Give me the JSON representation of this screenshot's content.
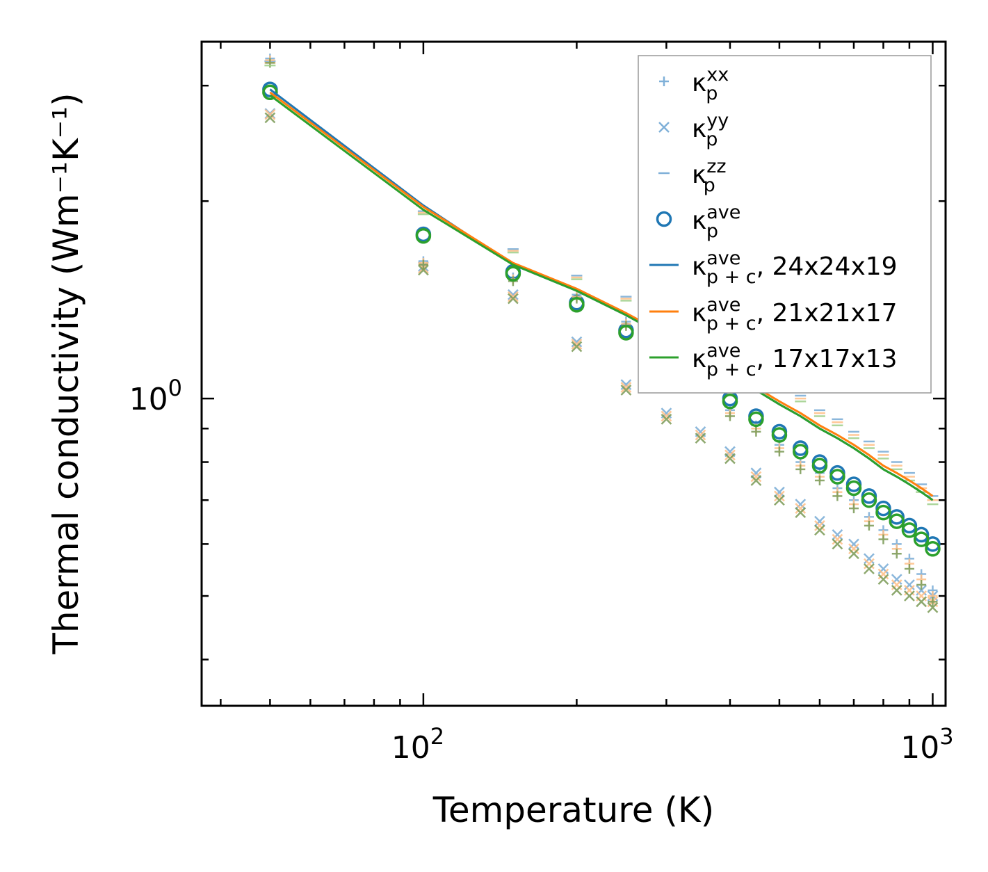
{
  "chart_data": {
    "type": "scatter",
    "title": "",
    "xlabel": "Temperature (K)",
    "ylabel": "Thermal conductivity (Wm⁻¹K⁻¹)",
    "xscale": "log",
    "yscale": "log",
    "xlim": [
      36.7,
      1060
    ],
    "ylim": [
      0.34,
      3.5
    ],
    "x_ticks": [
      {
        "value": 100,
        "base": "10",
        "exp": "2"
      },
      {
        "value": 1000,
        "base": "10",
        "exp": "3"
      }
    ],
    "y_ticks": [
      {
        "value": 1,
        "base": "10",
        "exp": "0"
      }
    ],
    "legend_position": "top-right",
    "temperatures": [
      50,
      100,
      150,
      200,
      250,
      300,
      350,
      400,
      450,
      500,
      550,
      600,
      650,
      700,
      750,
      800,
      850,
      900,
      950,
      1000
    ],
    "marker_series": [
      {
        "name": "kxx",
        "label_base": "κ",
        "label_sub": "p",
        "label_sup": "xx",
        "marker": "plus",
        "color": "#7fb0d8",
        "values": [
          3.3,
          1.62,
          1.53,
          1.44,
          1.31,
          1.17,
          1.06,
          0.96,
          0.91,
          0.85,
          0.8,
          0.77,
          0.73,
          0.7,
          0.66,
          0.63,
          0.6,
          0.57,
          0.54,
          0.51
        ]
      },
      {
        "name": "kyy",
        "label_base": "κ",
        "label_sub": "p",
        "label_sup": "yy",
        "marker": "x",
        "color": "#7fb0d8",
        "values": [
          2.72,
          1.59,
          1.44,
          1.22,
          1.05,
          0.95,
          0.89,
          0.83,
          0.77,
          0.72,
          0.69,
          0.65,
          0.62,
          0.6,
          0.57,
          0.55,
          0.53,
          0.52,
          0.51,
          0.5
        ]
      },
      {
        "name": "kzz",
        "label_base": "κ",
        "label_sub": "p",
        "label_sup": "zz",
        "marker": "dash",
        "color": "#7fb0d8",
        "values": [
          3.27,
          1.93,
          1.69,
          1.54,
          1.43,
          1.33,
          1.28,
          1.19,
          1.16,
          1.08,
          1.01,
          0.96,
          0.93,
          0.89,
          0.86,
          0.83,
          0.8,
          0.77,
          0.74,
          0.71
        ]
      },
      {
        "name": "kave",
        "label_base": "κ",
        "label_sub": "p",
        "label_sup": "ave",
        "marker": "circle",
        "color": "#1f77b4",
        "values": [
          2.96,
          1.78,
          1.56,
          1.4,
          1.27,
          1.15,
          1.07,
          1.0,
          0.94,
          0.89,
          0.84,
          0.8,
          0.77,
          0.74,
          0.71,
          0.68,
          0.66,
          0.64,
          0.62,
          0.6
        ]
      }
    ],
    "faded_marker_overlays": [
      {
        "name": "kxx-orange",
        "marker": "plus",
        "color": "#ffbf86",
        "values": [
          3.28,
          1.61,
          1.52,
          1.43,
          1.3,
          1.16,
          1.05,
          0.95,
          0.9,
          0.84,
          0.79,
          0.76,
          0.72,
          0.69,
          0.65,
          0.62,
          0.59,
          0.56,
          0.53,
          0.5
        ]
      },
      {
        "name": "kyy-orange",
        "marker": "x",
        "color": "#ffbf86",
        "values": [
          2.71,
          1.58,
          1.43,
          1.21,
          1.04,
          0.94,
          0.88,
          0.82,
          0.76,
          0.71,
          0.68,
          0.64,
          0.61,
          0.59,
          0.56,
          0.54,
          0.52,
          0.51,
          0.5,
          0.49
        ]
      },
      {
        "name": "kzz-orange",
        "marker": "dash",
        "color": "#ffbf86",
        "values": [
          3.25,
          1.92,
          1.68,
          1.53,
          1.42,
          1.32,
          1.27,
          1.18,
          1.15,
          1.07,
          1.0,
          0.95,
          0.92,
          0.88,
          0.85,
          0.82,
          0.79,
          0.76,
          0.73,
          0.7
        ]
      },
      {
        "name": "kxx-green",
        "marker": "plus",
        "color": "#7a9a55",
        "values": [
          3.25,
          1.6,
          1.51,
          1.42,
          1.29,
          1.15,
          1.04,
          0.94,
          0.89,
          0.83,
          0.78,
          0.75,
          0.71,
          0.68,
          0.64,
          0.61,
          0.58,
          0.55,
          0.52,
          0.49
        ]
      },
      {
        "name": "kyy-green",
        "marker": "x",
        "color": "#7a9a55",
        "values": [
          2.68,
          1.57,
          1.42,
          1.2,
          1.03,
          0.93,
          0.87,
          0.81,
          0.75,
          0.7,
          0.67,
          0.63,
          0.6,
          0.58,
          0.55,
          0.53,
          0.51,
          0.5,
          0.49,
          0.48
        ]
      },
      {
        "name": "kzz-green",
        "marker": "dash",
        "color": "#9fcf8a",
        "values": [
          3.22,
          1.91,
          1.67,
          1.52,
          1.41,
          1.31,
          1.26,
          1.17,
          1.14,
          1.06,
          0.99,
          0.94,
          0.91,
          0.87,
          0.84,
          0.81,
          0.78,
          0.75,
          0.72,
          0.69
        ]
      },
      {
        "name": "kave-green",
        "marker": "circle",
        "color": "#2ca02c",
        "values": [
          2.93,
          1.77,
          1.55,
          1.39,
          1.26,
          1.14,
          1.06,
          0.99,
          0.93,
          0.88,
          0.83,
          0.79,
          0.76,
          0.73,
          0.7,
          0.67,
          0.65,
          0.63,
          0.61,
          0.59
        ]
      }
    ],
    "line_series": [
      {
        "name": "24x24x19",
        "label_base": "κ",
        "label_sub": "p + c",
        "label_sup": "ave",
        "label_suffix": ", 24x24x19",
        "color": "#1f77b4",
        "values": [
          2.96,
          1.97,
          1.6,
          1.46,
          1.34,
          1.24,
          1.16,
          1.09,
          1.03,
          0.98,
          0.94,
          0.9,
          0.87,
          0.84,
          0.81,
          0.78,
          0.76,
          0.74,
          0.72,
          0.7
        ]
      },
      {
        "name": "21x21x17",
        "label_base": "κ",
        "label_sub": "p + c",
        "label_sup": "ave",
        "label_suffix": ", 21x21x17",
        "color": "#ff7f0e",
        "values": [
          2.93,
          1.96,
          1.61,
          1.47,
          1.35,
          1.25,
          1.17,
          1.1,
          1.04,
          0.99,
          0.95,
          0.91,
          0.88,
          0.85,
          0.82,
          0.79,
          0.77,
          0.75,
          0.73,
          0.71
        ]
      },
      {
        "name": "17x17x13",
        "label_base": "κ",
        "label_sub": "p + c",
        "label_sup": "ave",
        "label_suffix": ", 17x17x13",
        "color": "#2ca02c",
        "values": [
          2.9,
          1.94,
          1.6,
          1.46,
          1.34,
          1.24,
          1.16,
          1.09,
          1.03,
          0.98,
          0.94,
          0.9,
          0.87,
          0.84,
          0.81,
          0.78,
          0.76,
          0.74,
          0.72,
          0.7
        ]
      }
    ]
  }
}
